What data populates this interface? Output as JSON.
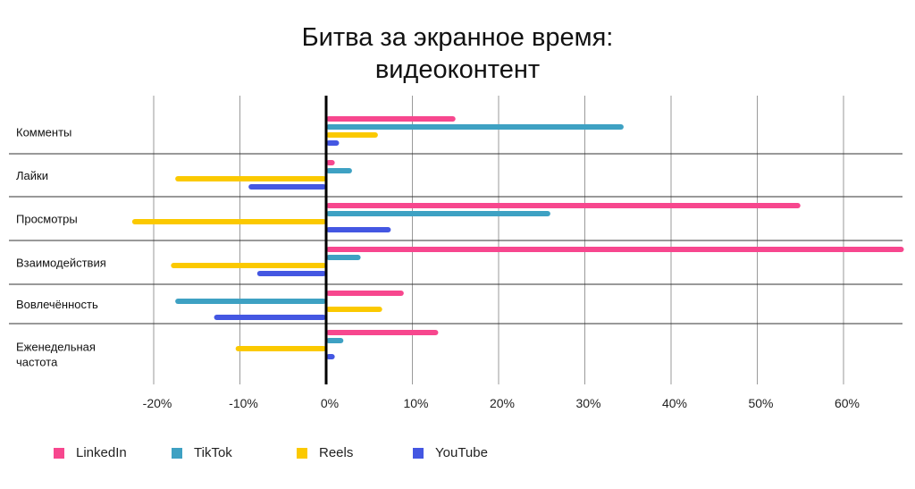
{
  "chart_data": {
    "type": "bar",
    "orientation": "horizontal",
    "title_lines": [
      "Битва за экранное время:",
      "видеоконтент"
    ],
    "categories": [
      "Комменты",
      "Лайки",
      "Просмотры",
      "Взаимодействия",
      "Вовлечённость",
      "Еженедельная частота"
    ],
    "category_lines": [
      [
        "Комменты"
      ],
      [
        "Лайки"
      ],
      [
        "Просмотры"
      ],
      [
        "Взаимодействия"
      ],
      [
        "Вовлечённость"
      ],
      [
        "Еженедельная",
        "частота"
      ]
    ],
    "xlim": [
      -20,
      67
    ],
    "x_ticks": [
      -20,
      -10,
      0,
      10,
      20,
      30,
      40,
      50,
      60
    ],
    "x_tick_labels": [
      "-20%",
      "-10%",
      "0%",
      "10%",
      "20%",
      "30%",
      "40%",
      "50%",
      "60%"
    ],
    "grid": true,
    "legend_position": "bottom",
    "series": [
      {
        "name": "LinkedIn",
        "color": "#f7478e",
        "values": [
          15,
          1,
          55,
          67,
          9,
          13
        ]
      },
      {
        "name": "TikTok",
        "color": "#3ea1c3",
        "values": [
          34.5,
          3,
          26,
          4,
          -17.5,
          2
        ]
      },
      {
        "name": "Reels",
        "color": "#fbc900",
        "values": [
          6,
          -17.5,
          -22.5,
          -18,
          6.5,
          -10.5
        ]
      },
      {
        "name": "YouTube",
        "color": "#4457e2",
        "values": [
          1.5,
          -9,
          7.5,
          -8,
          -13,
          1
        ]
      }
    ]
  }
}
